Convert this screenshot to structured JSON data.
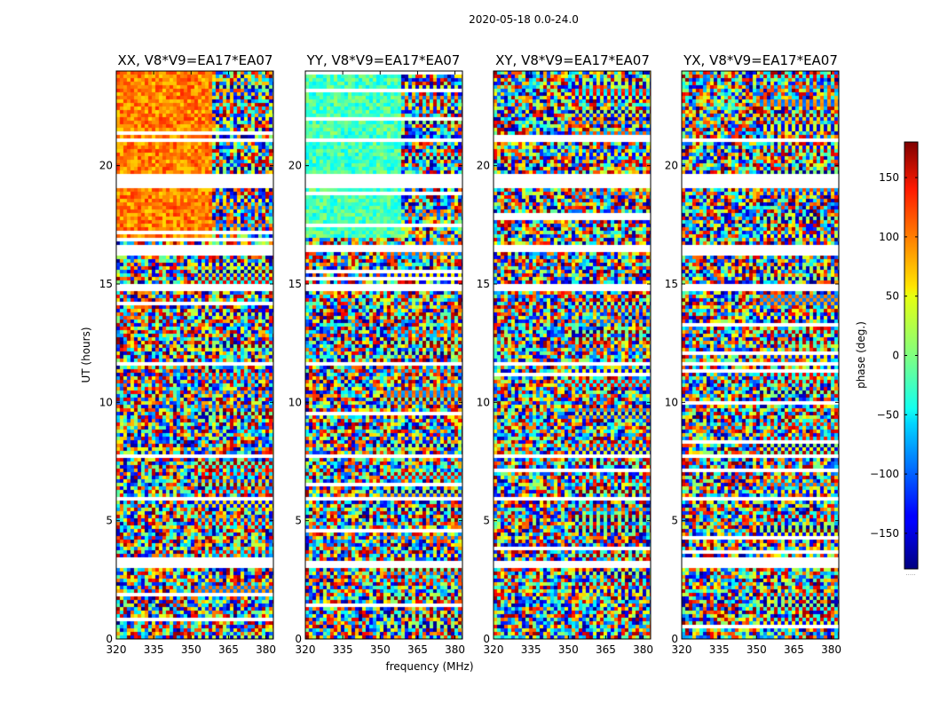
{
  "chart_data": {
    "type": "heatmap",
    "suptitle": "2020-05-18 0.0-24.0",
    "xlabel": "frequency (MHz)",
    "ylabel": "UT (hours)",
    "xlim": [
      320,
      383
    ],
    "ylim": [
      0,
      24
    ],
    "xticks": [
      320,
      335,
      350,
      365,
      380
    ],
    "yticks": [
      0,
      5,
      10,
      15,
      20
    ],
    "colormap": "jet",
    "panels": [
      {
        "title": "XX, V8*V9=EA17*EA07",
        "warm_band_hours": [
          17,
          24
        ],
        "warm_band_freq": [
          320,
          359
        ],
        "warm_phase_deg": 90
      },
      {
        "title": "YY, V8*V9=EA17*EA07",
        "warm_band_hours": [
          17,
          24
        ],
        "warm_band_freq": [
          320,
          359
        ],
        "warm_phase_deg": -20
      },
      {
        "title": "XY, V8*V9=EA17*EA07",
        "warm_band_hours": [],
        "warm_band_freq": [],
        "warm_phase_deg": 0
      },
      {
        "title": "YX, V8*V9=EA17*EA07",
        "warm_band_hours": [],
        "warm_band_freq": [],
        "warm_phase_deg": 0
      }
    ],
    "flagged_hours": [
      [
        19.0,
        19.6
      ],
      [
        3.0,
        3.3
      ],
      [
        14.7,
        15.0
      ],
      [
        16.3,
        16.6
      ],
      [
        11.5,
        11.7
      ],
      [
        7.6,
        7.8
      ],
      [
        5.8,
        6.0
      ],
      [
        2.5,
        2.6
      ],
      [
        21.0,
        21.1
      ],
      [
        22.3,
        22.4
      ],
      [
        12.4,
        12.5
      ],
      [
        9.7,
        9.8
      ],
      [
        0.4,
        0.5
      ],
      [
        8.5,
        8.6
      ]
    ],
    "colorbar": {
      "label": "phase (deg.)",
      "range": [
        -180,
        180
      ],
      "ticks": [
        -150,
        -100,
        -50,
        0,
        50,
        100,
        150
      ],
      "tick_labels": [
        "−150",
        "−100",
        "−50",
        "0",
        "50",
        "100",
        "150"
      ],
      "bottom_note": "....."
    }
  }
}
